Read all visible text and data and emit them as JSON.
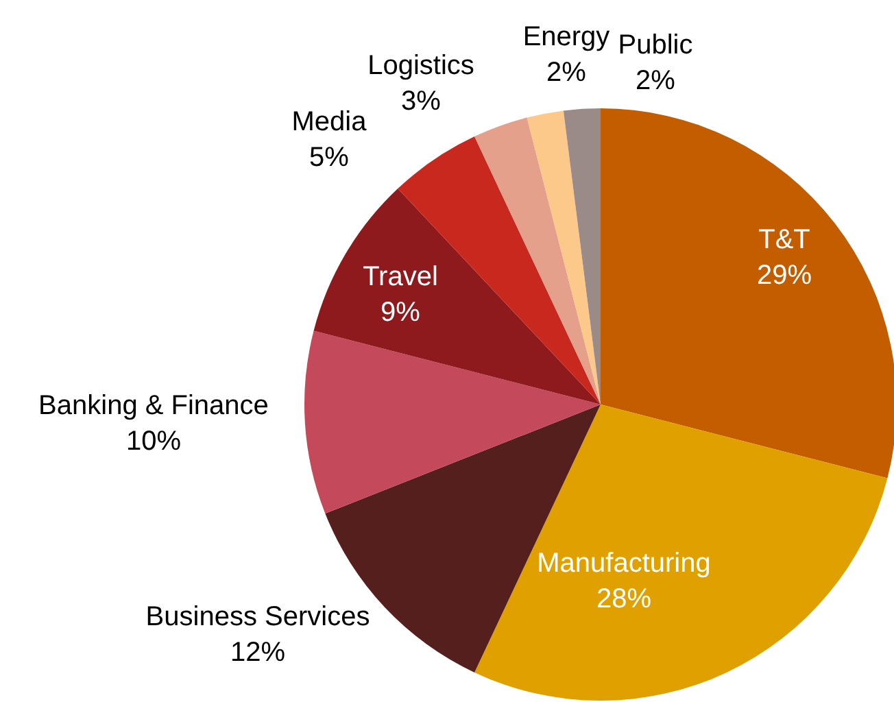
{
  "chart_data": {
    "type": "pie",
    "categories": [
      "T&T",
      "Manufacturing",
      "Business Services",
      "Banking & Finance",
      "Travel",
      "Media",
      "Logistics",
      "Energy",
      "Public"
    ],
    "values": [
      29,
      28,
      12,
      10,
      9,
      5,
      3,
      2,
      2
    ],
    "value_labels": [
      "29%",
      "28%",
      "12%",
      "10%",
      "9%",
      "5%",
      "3%",
      "2%",
      "2%"
    ],
    "colors": [
      "#c45c00",
      "#e0a000",
      "#551f1d",
      "#c4495a",
      "#8e1a1e",
      "#c8281e",
      "#e4a08a",
      "#fcc98a",
      "#9a8a88"
    ]
  }
}
